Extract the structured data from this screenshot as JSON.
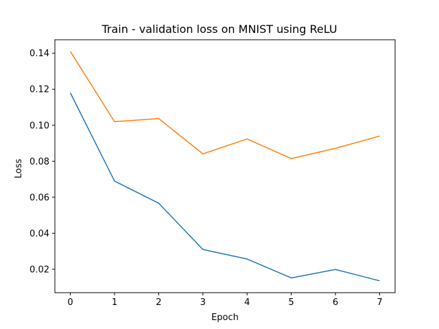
{
  "chart_data": {
    "type": "line",
    "title": "Train - validation loss on MNIST using ReLU",
    "xlabel": "Epoch",
    "ylabel": "Loss",
    "x": [
      0,
      1,
      2,
      3,
      4,
      5,
      6,
      7
    ],
    "xticks": [
      0,
      1,
      2,
      3,
      4,
      5,
      6,
      7
    ],
    "yticks": [
      0.02,
      0.04,
      0.06,
      0.08,
      0.1,
      0.12,
      0.14
    ],
    "ytick_labels": [
      "0.02",
      "0.04",
      "0.06",
      "0.08",
      "0.10",
      "0.12",
      "0.14"
    ],
    "xlim": [
      -0.35,
      7.35
    ],
    "ylim": [
      0.007,
      0.1475
    ],
    "grid": false,
    "series": [
      {
        "color": "#1f77b4",
        "values": [
          0.118,
          0.069,
          0.0567,
          0.031,
          0.0257,
          0.0152,
          0.0199,
          0.0136
        ]
      },
      {
        "color": "#ff7f0e",
        "values": [
          0.141,
          0.102,
          0.1037,
          0.0841,
          0.0924,
          0.0815,
          0.0872,
          0.094
        ]
      }
    ]
  }
}
